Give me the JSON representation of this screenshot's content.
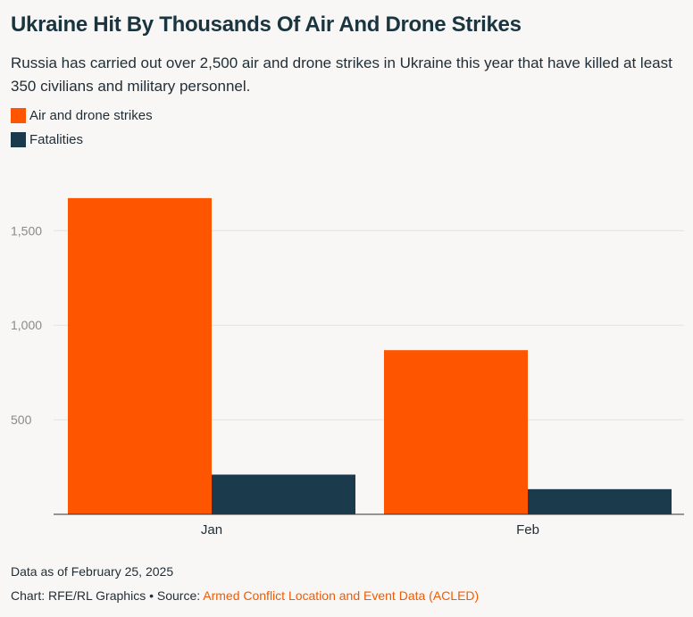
{
  "header": {
    "title": "Ukraine Hit By Thousands Of Air And Drone Strikes",
    "subtitle": "Russia has carried out over 2,500 air and drone strikes in Ukraine this year that have killed at least 350 civilians and military personnel."
  },
  "legend": [
    {
      "label": "Air and drone strikes",
      "color": "#fe5500"
    },
    {
      "label": "Fatalities",
      "color": "#1b3a4b"
    }
  ],
  "chart_data": {
    "type": "bar",
    "categories": [
      "Jan",
      "Feb"
    ],
    "series": [
      {
        "name": "Air and drone strikes",
        "color": "#fe5500",
        "values": [
          1672,
          868
        ]
      },
      {
        "name": "Fatalities",
        "color": "#1b3a4b",
        "values": [
          210,
          133
        ]
      }
    ],
    "yticks": [
      500,
      1000,
      1500
    ],
    "ytick_labels": [
      "500",
      "1,000",
      "1,500"
    ],
    "ylim": [
      0,
      1780
    ],
    "grid": true,
    "legend_position": "top-left"
  },
  "footer": {
    "data_note": "Data as of February 25, 2025",
    "credit_prefix": "Chart: RFE/RL Graphics • Source: ",
    "source_name": "Armed Conflict Location and Event Data (ACLED)"
  }
}
